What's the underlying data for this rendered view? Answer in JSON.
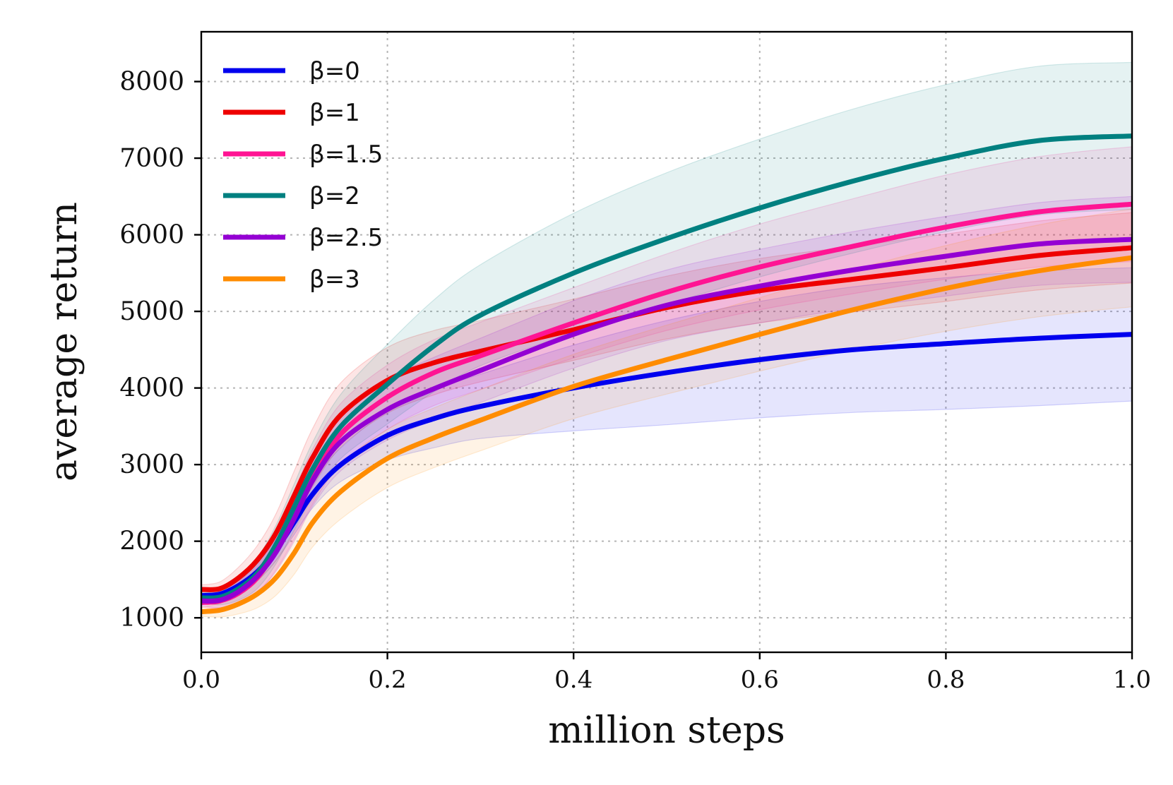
{
  "chart_data": {
    "type": "line",
    "title": "",
    "xlabel": "million steps",
    "ylabel": "average return",
    "xlim": [
      0.0,
      1.0
    ],
    "ylim": [
      550,
      8650
    ],
    "xticks": [
      0.0,
      0.2,
      0.4,
      0.6,
      0.8,
      1.0
    ],
    "xtick_labels": [
      "0.0",
      "0.2",
      "0.4",
      "0.6",
      "0.8",
      "1.0"
    ],
    "yticks": [
      1000,
      2000,
      3000,
      4000,
      5000,
      6000,
      7000,
      8000
    ],
    "ytick_labels": [
      "1000",
      "2000",
      "3000",
      "4000",
      "5000",
      "6000",
      "7000",
      "8000"
    ],
    "grid": true,
    "legend_position": "top-left",
    "x": [
      0.0,
      0.02,
      0.04,
      0.06,
      0.08,
      0.1,
      0.12,
      0.15,
      0.2,
      0.25,
      0.3,
      0.4,
      0.5,
      0.6,
      0.7,
      0.8,
      0.9,
      1.0
    ],
    "series": [
      {
        "name": "β=0",
        "color": "#0000ee",
        "values": [
          1290,
          1310,
          1420,
          1600,
          1880,
          2250,
          2620,
          3000,
          3380,
          3600,
          3760,
          4000,
          4200,
          4370,
          4500,
          4580,
          4650,
          4700
        ],
        "spread": [
          50,
          80,
          110,
          120,
          140,
          160,
          180,
          220,
          320,
          380,
          420,
          560,
          680,
          760,
          820,
          860,
          880,
          870
        ]
      },
      {
        "name": "β=1",
        "color": "#ee0000",
        "values": [
          1370,
          1380,
          1520,
          1750,
          2100,
          2600,
          3100,
          3650,
          4100,
          4330,
          4480,
          4760,
          5050,
          5270,
          5420,
          5570,
          5730,
          5830
        ],
        "spread": [
          60,
          90,
          140,
          190,
          250,
          320,
          380,
          420,
          430,
          420,
          400,
          400,
          410,
          420,
          430,
          440,
          450,
          460
        ]
      },
      {
        "name": "β=1.5",
        "color": "#ff1493",
        "values": [
          1200,
          1220,
          1320,
          1520,
          1880,
          2350,
          2850,
          3400,
          3880,
          4200,
          4420,
          4850,
          5250,
          5580,
          5850,
          6100,
          6300,
          6400
        ],
        "spread": [
          60,
          100,
          150,
          200,
          260,
          320,
          360,
          400,
          420,
          430,
          440,
          460,
          500,
          560,
          620,
          680,
          720,
          750
        ]
      },
      {
        "name": "β=2",
        "color": "#008080",
        "values": [
          1260,
          1270,
          1380,
          1580,
          1950,
          2450,
          2950,
          3500,
          4050,
          4550,
          4950,
          5500,
          5950,
          6350,
          6700,
          7000,
          7230,
          7290
        ],
        "spread": [
          60,
          100,
          150,
          200,
          250,
          300,
          350,
          420,
          520,
          600,
          660,
          780,
          860,
          900,
          940,
          960,
          970,
          960
        ]
      },
      {
        "name": "β=2.5",
        "color": "#9400d3",
        "values": [
          1220,
          1230,
          1340,
          1540,
          1850,
          2300,
          2800,
          3300,
          3720,
          3990,
          4230,
          4700,
          5080,
          5330,
          5540,
          5720,
          5880,
          5940
        ],
        "spread": [
          60,
          100,
          150,
          200,
          250,
          300,
          340,
          380,
          400,
          410,
          420,
          440,
          460,
          480,
          500,
          520,
          540,
          560
        ]
      },
      {
        "name": "β=3",
        "color": "#ff8c00",
        "values": [
          1080,
          1100,
          1180,
          1310,
          1520,
          1850,
          2250,
          2650,
          3080,
          3350,
          3580,
          4020,
          4370,
          4700,
          5020,
          5300,
          5530,
          5700
        ],
        "spread": [
          60,
          90,
          130,
          180,
          230,
          280,
          320,
          360,
          380,
          390,
          400,
          420,
          450,
          480,
          520,
          560,
          600,
          640
        ]
      }
    ]
  }
}
